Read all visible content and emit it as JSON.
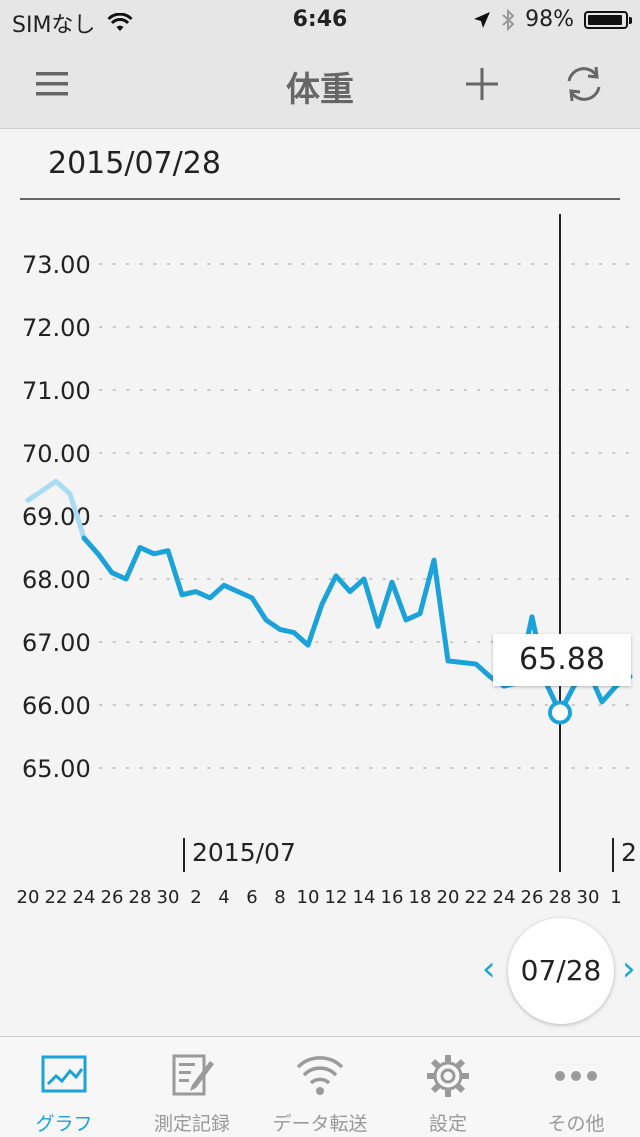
{
  "status": {
    "carrier": "SIMなし",
    "time": "6:46",
    "battery": "98%"
  },
  "nav": {
    "title": "体重",
    "menu_icon": "hamburger-icon",
    "add_icon": "plus-icon",
    "sync_icon": "sync-icon"
  },
  "header": {
    "date": "2015/07/28"
  },
  "chart_data": {
    "type": "line",
    "y_ticks": [
      "73.00",
      "72.00",
      "71.00",
      "70.00",
      "69.00",
      "68.00",
      "67.00",
      "66.00",
      "65.00"
    ],
    "ylim": [
      64.6,
      73.3
    ],
    "x_tick_labels": [
      "20",
      "22",
      "24",
      "26",
      "28",
      "30",
      "2",
      "4",
      "6",
      "8",
      "10",
      "12",
      "14",
      "16",
      "18",
      "20",
      "22",
      "24",
      "26",
      "28",
      "30",
      "1"
    ],
    "month_labels": [
      {
        "label": "2015/07"
      },
      {
        "label": "2"
      }
    ],
    "series": [
      {
        "values": [
          {
            "x": "2015-06-20",
            "y": 69.25
          },
          {
            "x": "2015-06-22",
            "y": 69.55
          },
          {
            "x": "2015-06-23",
            "y": 69.35
          },
          {
            "x": "2015-06-24",
            "y": 68.65
          },
          {
            "x": "2015-06-25",
            "y": 68.4
          },
          {
            "x": "2015-06-26",
            "y": 68.1
          },
          {
            "x": "2015-06-27",
            "y": 68.0
          },
          {
            "x": "2015-06-28",
            "y": 68.5
          },
          {
            "x": "2015-06-29",
            "y": 68.4
          },
          {
            "x": "2015-06-30",
            "y": 68.45
          },
          {
            "x": "2015-07-01",
            "y": 67.75
          },
          {
            "x": "2015-07-02",
            "y": 67.8
          },
          {
            "x": "2015-07-03",
            "y": 67.7
          },
          {
            "x": "2015-07-04",
            "y": 67.9
          },
          {
            "x": "2015-07-05",
            "y": 67.8
          },
          {
            "x": "2015-07-06",
            "y": 67.7
          },
          {
            "x": "2015-07-07",
            "y": 67.35
          },
          {
            "x": "2015-07-08",
            "y": 67.2
          },
          {
            "x": "2015-07-09",
            "y": 67.15
          },
          {
            "x": "2015-07-10",
            "y": 66.95
          },
          {
            "x": "2015-07-11",
            "y": 67.6
          },
          {
            "x": "2015-07-12",
            "y": 68.05
          },
          {
            "x": "2015-07-13",
            "y": 67.8
          },
          {
            "x": "2015-07-14",
            "y": 68.0
          },
          {
            "x": "2015-07-15",
            "y": 67.25
          },
          {
            "x": "2015-07-16",
            "y": 67.95
          },
          {
            "x": "2015-07-17",
            "y": 67.35
          },
          {
            "x": "2015-07-18",
            "y": 67.45
          },
          {
            "x": "2015-07-19",
            "y": 68.3
          },
          {
            "x": "2015-07-20",
            "y": 66.7
          },
          {
            "x": "2015-07-22",
            "y": 66.65
          },
          {
            "x": "2015-07-23",
            "y": 66.45
          },
          {
            "x": "2015-07-24",
            "y": 66.3
          },
          {
            "x": "2015-07-25",
            "y": 66.35
          },
          {
            "x": "2015-07-26",
            "y": 67.4
          },
          {
            "x": "2015-07-27",
            "y": 66.35
          },
          {
            "x": "2015-07-28",
            "y": 65.88
          },
          {
            "x": "2015-07-29",
            "y": 66.3
          },
          {
            "x": "2015-07-30",
            "y": 66.55
          },
          {
            "x": "2015-07-31",
            "y": 66.05
          },
          {
            "x": "2015-08-01",
            "y": 66.3
          },
          {
            "x": "2015-08-02",
            "y": 66.45
          }
        ]
      }
    ],
    "highlight_start": "2015-06-24",
    "selected": {
      "x": "2015-07-28",
      "y": 65.88,
      "label": "65.88"
    },
    "colors": {
      "line": "#1aa2d9",
      "faded": "#a9dcf2",
      "grid": "#c8c8c8",
      "cursor": "#222222"
    },
    "grid": true
  },
  "date_nav": {
    "current": "07/28",
    "prev": "‹",
    "next": "›"
  },
  "tabs": [
    {
      "label": "グラフ",
      "icon": "graph-icon",
      "active": true
    },
    {
      "label": "測定記録",
      "icon": "notebook-edit-icon",
      "active": false
    },
    {
      "label": "データ転送",
      "icon": "wifi-icon",
      "active": false
    },
    {
      "label": "設定",
      "icon": "gear-icon",
      "active": false
    },
    {
      "label": "その他",
      "icon": "more-dots-icon",
      "active": false
    }
  ]
}
